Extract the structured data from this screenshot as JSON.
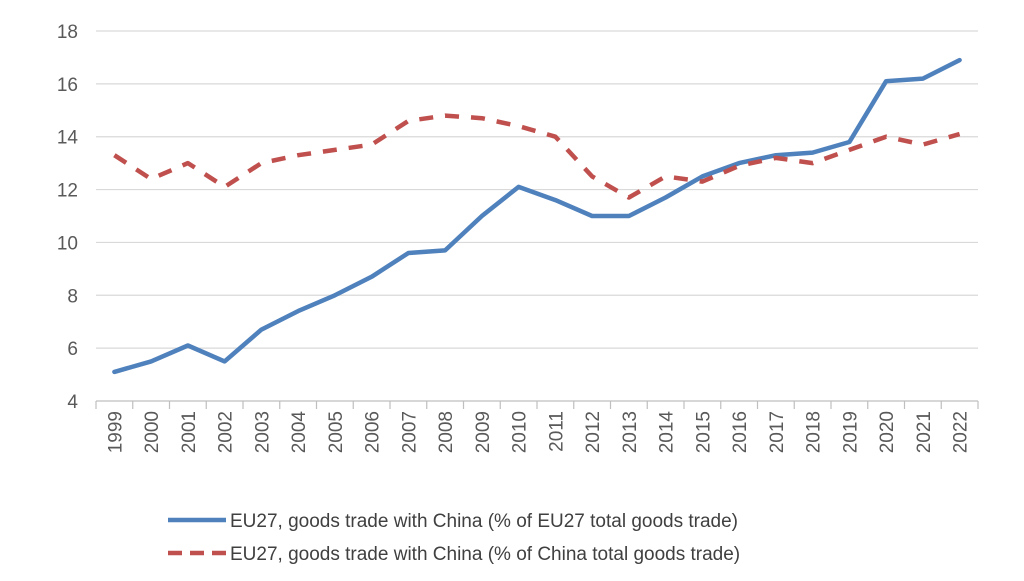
{
  "chart_data": {
    "type": "line",
    "title": "",
    "xlabel": "",
    "ylabel": "",
    "x": [
      "1999",
      "2000",
      "2001",
      "2002",
      "2003",
      "2004",
      "2005",
      "2006",
      "2007",
      "2008",
      "2009",
      "2010",
      "2011",
      "2012",
      "2013",
      "2014",
      "2015",
      "2016",
      "2017",
      "2018",
      "2019",
      "2020",
      "2021",
      "2022"
    ],
    "ylim": [
      4,
      18
    ],
    "yticks": [
      "4",
      "6",
      "8",
      "10",
      "12",
      "14",
      "16",
      "18"
    ],
    "grid": "horizontal",
    "legend_position": "bottom",
    "series": [
      {
        "name": "EU27, goods trade with China (% of EU27 total goods trade)",
        "style": "solid",
        "color": "#4F81BD",
        "values": [
          5.1,
          5.5,
          6.1,
          5.5,
          6.7,
          7.4,
          8.0,
          8.7,
          9.6,
          9.7,
          11.0,
          12.1,
          11.6,
          11.0,
          11.0,
          11.7,
          12.5,
          13.0,
          13.3,
          13.4,
          13.8,
          16.1,
          16.2,
          16.9
        ]
      },
      {
        "name": "EU27, goods trade with China (% of China total goods trade)",
        "style": "dashed",
        "color": "#C0504D",
        "values": [
          13.3,
          12.4,
          13.0,
          12.1,
          13.0,
          13.3,
          13.5,
          13.7,
          14.6,
          14.8,
          14.7,
          14.4,
          14.0,
          12.5,
          11.7,
          12.5,
          12.3,
          12.9,
          13.2,
          13.0,
          13.5,
          14.0,
          13.7,
          14.1
        ]
      }
    ]
  }
}
